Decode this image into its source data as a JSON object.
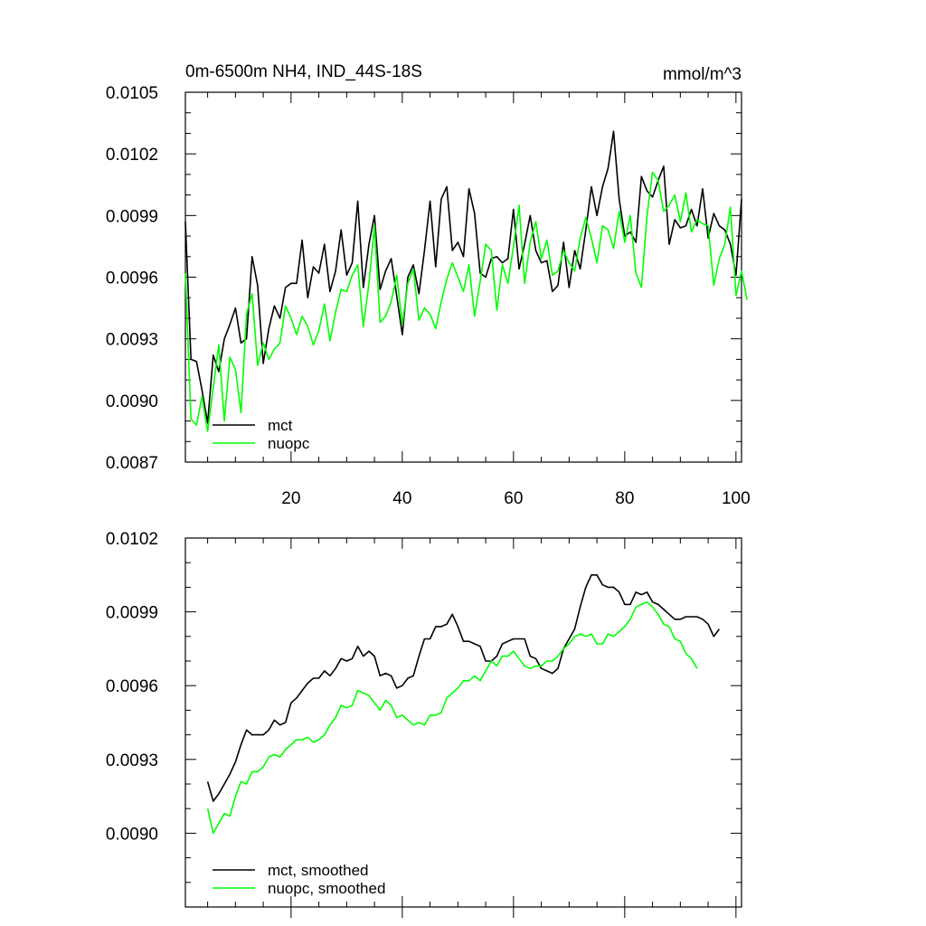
{
  "colors": {
    "mct": "#000000",
    "nuopc": "#00ff00"
  },
  "chart_data": [
    {
      "type": "line",
      "title": "0m-6500m NH4, IND_44S-18S",
      "units": "mmol/m^3",
      "xlim": [
        1,
        101
      ],
      "ylim": [
        0.0087,
        0.0105
      ],
      "y_ticks": [
        "0.0087",
        "0.0090",
        "0.0093",
        "0.0096",
        "0.0099",
        "0.0102",
        "0.0105"
      ],
      "x_ticks": [
        "20",
        "40",
        "60",
        "80",
        "100"
      ],
      "legend_position": "bottom-left",
      "series": [
        {
          "name": "mct",
          "color_key": "mct",
          "x_start": 1,
          "values": [
            0.00987,
            0.0092,
            0.00919,
            0.00905,
            0.00889,
            0.00922,
            0.00914,
            0.0093,
            0.00937,
            0.00945,
            0.00928,
            0.0093,
            0.0097,
            0.00956,
            0.00918,
            0.00935,
            0.00946,
            0.0094,
            0.00955,
            0.00957,
            0.00957,
            0.00978,
            0.0095,
            0.00965,
            0.00962,
            0.00976,
            0.00953,
            0.00963,
            0.00983,
            0.00961,
            0.00967,
            0.00997,
            0.00955,
            0.00976,
            0.0099,
            0.00954,
            0.00963,
            0.00969,
            0.00951,
            0.00932,
            0.0096,
            0.00966,
            0.00952,
            0.00973,
            0.00997,
            0.00965,
            0.00998,
            0.01004,
            0.00973,
            0.00977,
            0.0097,
            0.01003,
            0.00991,
            0.00962,
            0.0096,
            0.00969,
            0.0097,
            0.00967,
            0.00969,
            0.00993,
            0.00964,
            0.00976,
            0.0099,
            0.00973,
            0.00967,
            0.00968,
            0.00953,
            0.00956,
            0.00977,
            0.00955,
            0.00973,
            0.00964,
            0.00983,
            0.01004,
            0.0099,
            0.01004,
            0.01013,
            0.01031,
            0.00998,
            0.0098,
            0.00982,
            0.00977,
            0.01009,
            0.01002,
            0.00999,
            0.01007,
            0.01014,
            0.00976,
            0.00988,
            0.00984,
            0.00985,
            0.00993,
            0.00985,
            0.01003,
            0.00979,
            0.00991,
            0.00985,
            0.00983,
            0.00976,
            0.00961,
            0.00998
          ]
        },
        {
          "name": "nuopc",
          "color_key": "nuopc",
          "x_start": 1,
          "values": [
            0.00962,
            0.00891,
            0.00888,
            0.00902,
            0.00885,
            0.00906,
            0.00927,
            0.0089,
            0.00921,
            0.00915,
            0.00894,
            0.00942,
            0.00952,
            0.00917,
            0.00928,
            0.0092,
            0.00925,
            0.00928,
            0.00946,
            0.0094,
            0.00932,
            0.00941,
            0.00936,
            0.00927,
            0.00934,
            0.00947,
            0.00929,
            0.00943,
            0.00954,
            0.00953,
            0.00961,
            0.00966,
            0.00936,
            0.00957,
            0.00985,
            0.00938,
            0.00941,
            0.00948,
            0.00961,
            0.00937,
            0.00957,
            0.00964,
            0.00939,
            0.00945,
            0.00942,
            0.00935,
            0.00948,
            0.00959,
            0.00967,
            0.0096,
            0.00953,
            0.00966,
            0.00941,
            0.00958,
            0.00976,
            0.00973,
            0.00944,
            0.00966,
            0.00957,
            0.00975,
            0.00995,
            0.00957,
            0.00977,
            0.00987,
            0.00969,
            0.00978,
            0.00961,
            0.00963,
            0.00973,
            0.00967,
            0.00963,
            0.00979,
            0.00989,
            0.00979,
            0.00967,
            0.00985,
            0.00983,
            0.00974,
            0.00992,
            0.00977,
            0.0099,
            0.00962,
            0.00955,
            0.0099,
            0.01011,
            0.01007,
            0.00992,
            0.00995,
            0.01,
            0.00987,
            0.01001,
            0.00982,
            0.00988,
            0.00986,
            0.00985,
            0.00956,
            0.00969,
            0.00976,
            0.00994,
            0.00951,
            0.00963,
            0.00949
          ]
        }
      ]
    },
    {
      "type": "line",
      "xlim": [
        1,
        101
      ],
      "ylim": [
        0.0087,
        0.0102
      ],
      "y_ticks": [
        "0.0090",
        "0.0093",
        "0.0096",
        "0.0099",
        "0.0102"
      ],
      "legend_position": "bottom-left",
      "series": [
        {
          "name": "mct, smoothed",
          "color_key": "mct",
          "x_start": 5,
          "values": [
            0.00921,
            0.00913,
            0.00916,
            0.0092,
            0.00924,
            0.00929,
            0.00936,
            0.00942,
            0.0094,
            0.0094,
            0.0094,
            0.00942,
            0.00946,
            0.00944,
            0.00945,
            0.00953,
            0.00955,
            0.00958,
            0.00961,
            0.00963,
            0.00963,
            0.00966,
            0.00964,
            0.00967,
            0.00971,
            0.0097,
            0.00971,
            0.00976,
            0.00972,
            0.00974,
            0.00972,
            0.00964,
            0.00965,
            0.00964,
            0.00959,
            0.0096,
            0.00963,
            0.00964,
            0.00972,
            0.00979,
            0.00979,
            0.00984,
            0.00984,
            0.00985,
            0.00989,
            0.00984,
            0.00978,
            0.00978,
            0.00977,
            0.00976,
            0.0097,
            0.0097,
            0.00972,
            0.00977,
            0.00978,
            0.00979,
            0.00979,
            0.00979,
            0.00972,
            0.00971,
            0.00967,
            0.00966,
            0.00965,
            0.00967,
            0.00975,
            0.00979,
            0.00983,
            0.00992,
            0.01,
            0.01005,
            0.01005,
            0.01001,
            0.01,
            0.01,
            0.00998,
            0.00993,
            0.00993,
            0.00998,
            0.00997,
            0.00998,
            0.00994,
            0.00993,
            0.00991,
            0.00989,
            0.00987,
            0.00987,
            0.00988,
            0.00988,
            0.00988,
            0.00987,
            0.00985,
            0.0098,
            0.00983
          ]
        },
        {
          "name": "nuopc, smoothed",
          "color_key": "nuopc",
          "x_start": 5,
          "values": [
            0.0091,
            0.009,
            0.00904,
            0.00908,
            0.00907,
            0.00915,
            0.00921,
            0.0092,
            0.00925,
            0.00925,
            0.00927,
            0.00931,
            0.00932,
            0.00931,
            0.00934,
            0.00936,
            0.00938,
            0.00938,
            0.00939,
            0.00937,
            0.00938,
            0.0094,
            0.00944,
            0.00947,
            0.00952,
            0.00951,
            0.00952,
            0.00958,
            0.00957,
            0.00956,
            0.00953,
            0.0095,
            0.00954,
            0.00952,
            0.00947,
            0.00948,
            0.00946,
            0.00944,
            0.00945,
            0.00944,
            0.00948,
            0.00948,
            0.00949,
            0.00955,
            0.00957,
            0.00959,
            0.00962,
            0.00962,
            0.00964,
            0.00962,
            0.00966,
            0.0097,
            0.00968,
            0.00972,
            0.00972,
            0.00974,
            0.00971,
            0.00968,
            0.00967,
            0.00968,
            0.00968,
            0.0097,
            0.0097,
            0.00972,
            0.00975,
            0.00977,
            0.0098,
            0.00981,
            0.0098,
            0.00981,
            0.00977,
            0.00977,
            0.00981,
            0.0098,
            0.00982,
            0.00984,
            0.00987,
            0.00992,
            0.00993,
            0.00994,
            0.00992,
            0.00989,
            0.00985,
            0.00984,
            0.00979,
            0.00978,
            0.00973,
            0.00971,
            0.00967
          ]
        }
      ]
    }
  ]
}
